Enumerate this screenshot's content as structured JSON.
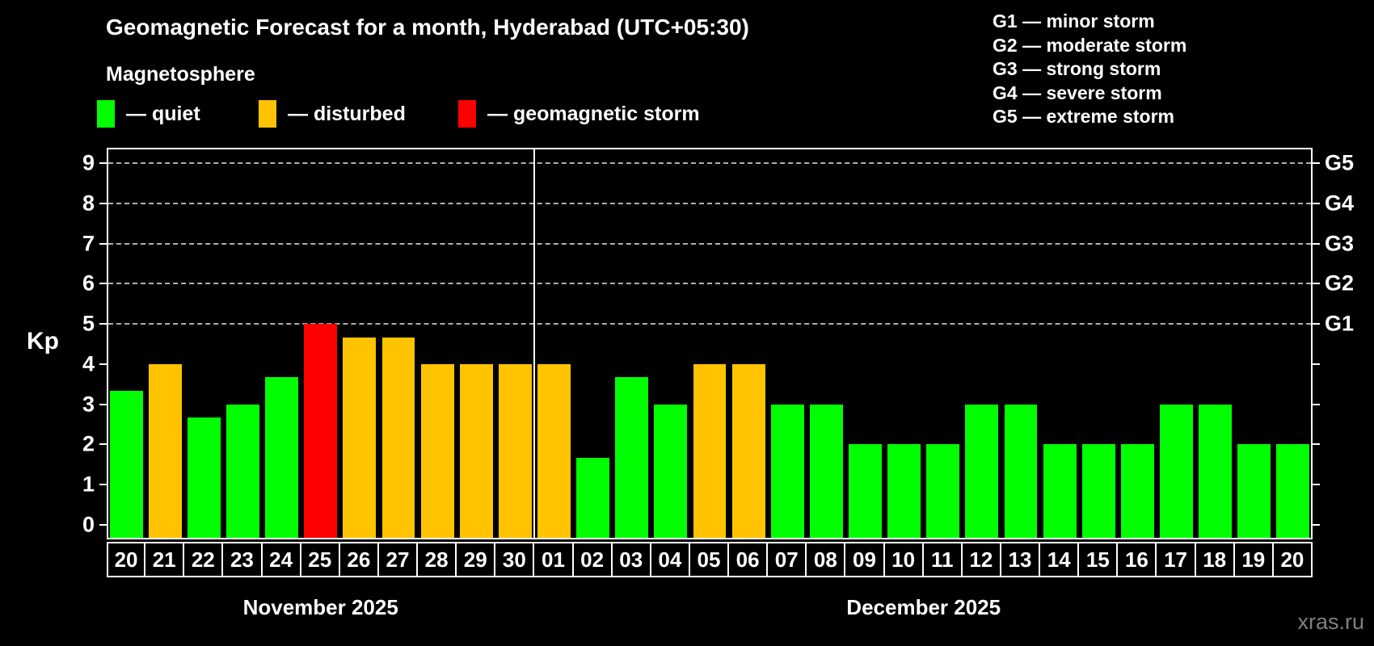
{
  "title": "Geomagnetic Forecast for a month, Hyderabad (UTC+05:30)",
  "subtitle": "Magnetosphere",
  "legend": {
    "items": [
      {
        "key": "quiet",
        "label": "— quiet",
        "color": "#00ff00"
      },
      {
        "key": "disturbed",
        "label": "— disturbed",
        "color": "#ffc300"
      },
      {
        "key": "storm",
        "label": "— geomagnetic storm",
        "color": "#ff0000"
      }
    ]
  },
  "storm_scale_legend": [
    "G1 — minor storm",
    "G2 — moderate storm",
    "G3 — strong storm",
    "G4 — severe storm",
    "G5 — extreme storm"
  ],
  "watermark": "xras.ru",
  "colors": {
    "quiet": "#00ff00",
    "disturbed": "#ffc300",
    "storm": "#ff0000",
    "background": "#000000",
    "axis": "#ffffff",
    "grid": "#b0b0b0",
    "watermark": "#808080"
  },
  "chart_data": {
    "type": "bar",
    "title": "Geomagnetic Forecast for a month, Hyderabad (UTC+05:30)",
    "ylabel": "Kp",
    "ylim": [
      -0.36,
      9.38
    ],
    "y_ticks": [
      0,
      1,
      2,
      3,
      4,
      5,
      6,
      7,
      8,
      9
    ],
    "gridlines_at": [
      5,
      6,
      7,
      8,
      9
    ],
    "grid": true,
    "right_axis_labels": [
      {
        "label": "G5",
        "kp": 9
      },
      {
        "label": "G4",
        "kp": 8
      },
      {
        "label": "G3",
        "kp": 7
      },
      {
        "label": "G2",
        "kp": 6
      },
      {
        "label": "G1",
        "kp": 5
      }
    ],
    "months": [
      {
        "label": "November 2025",
        "days": 11
      },
      {
        "label": "December 2025",
        "days": 20
      }
    ],
    "categories": [
      "20",
      "21",
      "22",
      "23",
      "24",
      "25",
      "26",
      "27",
      "28",
      "29",
      "30",
      "01",
      "02",
      "03",
      "04",
      "05",
      "06",
      "07",
      "08",
      "09",
      "10",
      "11",
      "12",
      "13",
      "14",
      "15",
      "16",
      "17",
      "18",
      "19",
      "20"
    ],
    "series": [
      {
        "name": "Kp forecast",
        "values": [
          3.33,
          4,
          2.67,
          3,
          3.67,
          5,
          4.67,
          4.67,
          4,
          4,
          4,
          4,
          1.67,
          3.67,
          3,
          4,
          4,
          3,
          3,
          2,
          2,
          2,
          3,
          3,
          2,
          2,
          2,
          3,
          3,
          2,
          2
        ]
      }
    ],
    "bar_states": [
      "quiet",
      "disturbed",
      "quiet",
      "quiet",
      "quiet",
      "storm",
      "disturbed",
      "disturbed",
      "disturbed",
      "disturbed",
      "disturbed",
      "disturbed",
      "quiet",
      "quiet",
      "quiet",
      "disturbed",
      "disturbed",
      "quiet",
      "quiet",
      "quiet",
      "quiet",
      "quiet",
      "quiet",
      "quiet",
      "quiet",
      "quiet",
      "quiet",
      "quiet",
      "quiet",
      "quiet",
      "quiet"
    ],
    "legend_position": "top-left"
  }
}
